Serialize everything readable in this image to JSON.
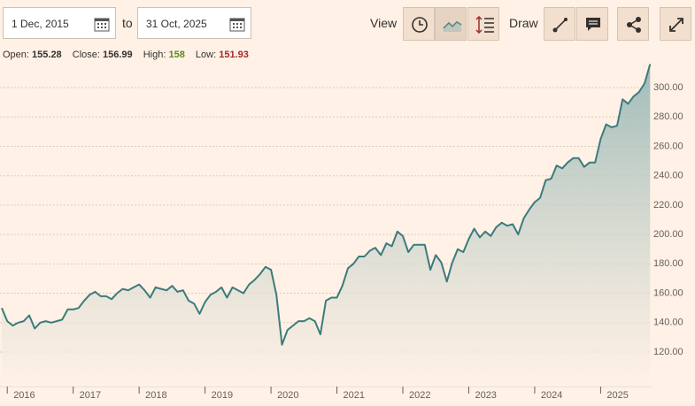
{
  "toolbar": {
    "from": "1 Dec, 2015",
    "to_label": "to",
    "to": "31 Oct, 2025",
    "view": "View",
    "draw": "Draw"
  },
  "ohlc": {
    "open_label": "Open:",
    "open": 155.28,
    "close_label": "Close:",
    "close": 156.99,
    "high_label": "High:",
    "high": 158,
    "low_label": "Low:",
    "low": 151.93
  },
  "chart_data": {
    "type": "area",
    "color": "#3b7b7d",
    "grid": true,
    "x": [
      2015.917,
      2016.0,
      2016.083,
      2016.167,
      2016.25,
      2016.333,
      2016.417,
      2016.5,
      2016.583,
      2016.667,
      2016.75,
      2016.833,
      2016.917,
      2017.0,
      2017.083,
      2017.167,
      2017.25,
      2017.333,
      2017.417,
      2017.5,
      2017.583,
      2017.667,
      2017.75,
      2017.833,
      2017.917,
      2018.0,
      2018.083,
      2018.167,
      2018.25,
      2018.333,
      2018.417,
      2018.5,
      2018.583,
      2018.667,
      2018.75,
      2018.833,
      2018.917,
      2019.0,
      2019.083,
      2019.167,
      2019.25,
      2019.333,
      2019.417,
      2019.5,
      2019.583,
      2019.667,
      2019.75,
      2019.833,
      2019.917,
      2020.0,
      2020.083,
      2020.167,
      2020.25,
      2020.333,
      2020.417,
      2020.5,
      2020.583,
      2020.667,
      2020.75,
      2020.833,
      2020.917,
      2021.0,
      2021.083,
      2021.167,
      2021.25,
      2021.333,
      2021.417,
      2021.5,
      2021.583,
      2021.667,
      2021.75,
      2021.833,
      2021.917,
      2022.0,
      2022.083,
      2022.167,
      2022.25,
      2022.333,
      2022.417,
      2022.5,
      2022.583,
      2022.667,
      2022.75,
      2022.833,
      2022.917,
      2023.0,
      2023.083,
      2023.167,
      2023.25,
      2023.333,
      2023.417,
      2023.5,
      2023.583,
      2023.667,
      2023.75,
      2023.833,
      2023.917,
      2024.0,
      2024.083,
      2024.167,
      2024.25,
      2024.333,
      2024.417,
      2024.5,
      2024.583,
      2024.667,
      2024.75,
      2024.833,
      2024.917,
      2025.0,
      2025.083,
      2025.167,
      2025.25,
      2025.333,
      2025.417,
      2025.5,
      2025.583,
      2025.667,
      2025.75
    ],
    "values": [
      150,
      141,
      138,
      140,
      141,
      145,
      136,
      140,
      141,
      140,
      141,
      142,
      149,
      149,
      150,
      155,
      159,
      161,
      158,
      158,
      156,
      160,
      163,
      162,
      164,
      166,
      162,
      157,
      164,
      163,
      162,
      165,
      161,
      162,
      155,
      153,
      146,
      154,
      159,
      161,
      164,
      157,
      164,
      162,
      160,
      166,
      169,
      173,
      178,
      176,
      159,
      125,
      135,
      138,
      141,
      141,
      143,
      141,
      132,
      155,
      157,
      157,
      165,
      177,
      180,
      185,
      185,
      189,
      191,
      186,
      194,
      192,
      202,
      199,
      188,
      193,
      193,
      193,
      176,
      186,
      181,
      168,
      181,
      190,
      188,
      197,
      204,
      198,
      202,
      199,
      205,
      208,
      206,
      207,
      200,
      211,
      217,
      222,
      225,
      237,
      238,
      247,
      245,
      249,
      252,
      252,
      246,
      249,
      249,
      265,
      275,
      273,
      274,
      292,
      289,
      294,
      297,
      303,
      316
    ],
    "xlim": [
      2015.89,
      2025.76
    ],
    "xticks": [
      2016,
      2017,
      2018,
      2019,
      2020,
      2021,
      2022,
      2023,
      2024,
      2025
    ],
    "ylim": [
      96.5,
      318.7
    ],
    "yticks": [
      {
        "value": 120,
        "label": "120.00"
      },
      {
        "value": 140,
        "label": "140.00"
      },
      {
        "value": 160,
        "label": "160.00"
      },
      {
        "value": 180,
        "label": "180.00"
      },
      {
        "value": 200,
        "label": "200.00"
      },
      {
        "value": 220,
        "label": "220.00"
      },
      {
        "value": 240,
        "label": "240.00"
      },
      {
        "value": 260,
        "label": "260.00"
      },
      {
        "value": 280,
        "label": "280.00"
      },
      {
        "value": 300,
        "label": "300.00"
      }
    ]
  }
}
